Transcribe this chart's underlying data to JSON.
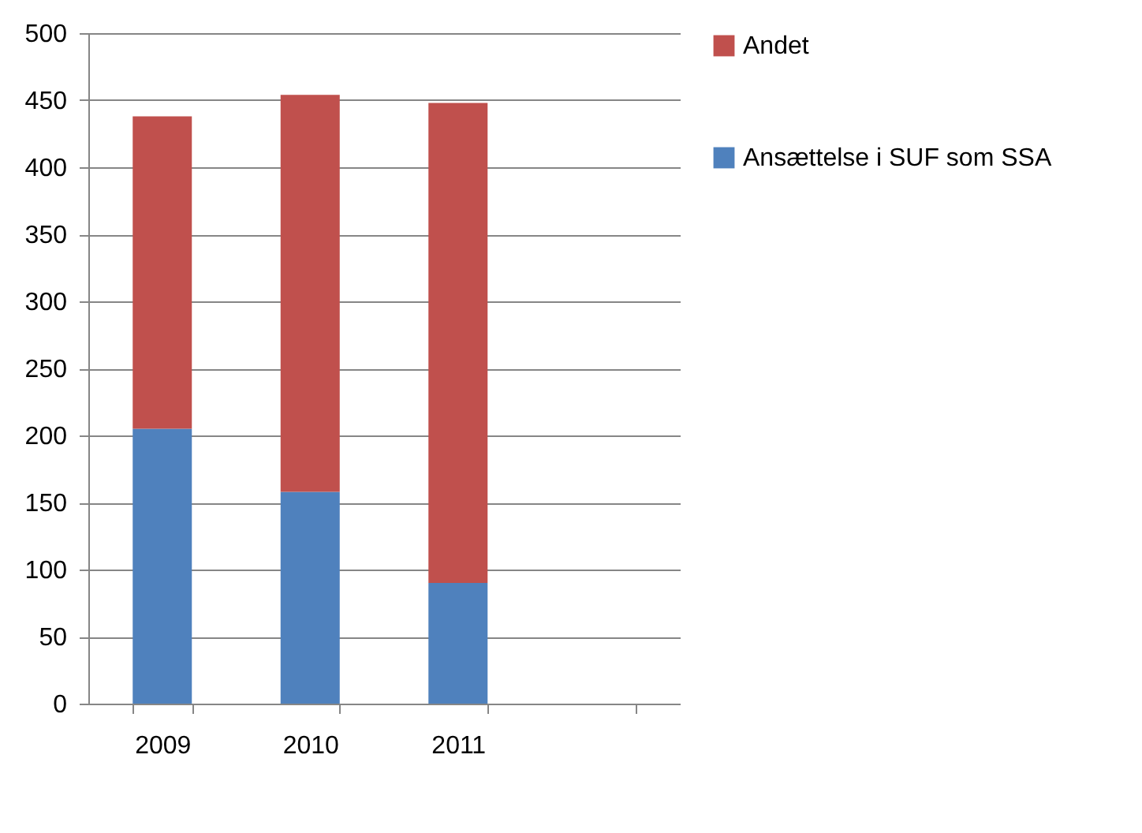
{
  "chart_data": {
    "type": "bar",
    "stacked": true,
    "categories": [
      "2009",
      "2010",
      "2011",
      null
    ],
    "series": [
      {
        "name": "Ansættelse i SUF som SSA",
        "color": "#4f81bd",
        "values": [
          205,
          158,
          90,
          null
        ]
      },
      {
        "name": "Andet",
        "color": "#c0504d",
        "values": [
          233,
          296,
          358,
          null
        ]
      }
    ],
    "ylim": [
      0,
      500
    ],
    "yticks": [
      0,
      50,
      100,
      150,
      200,
      250,
      300,
      350,
      400,
      450,
      500
    ],
    "grid": "y",
    "legend": "right"
  }
}
